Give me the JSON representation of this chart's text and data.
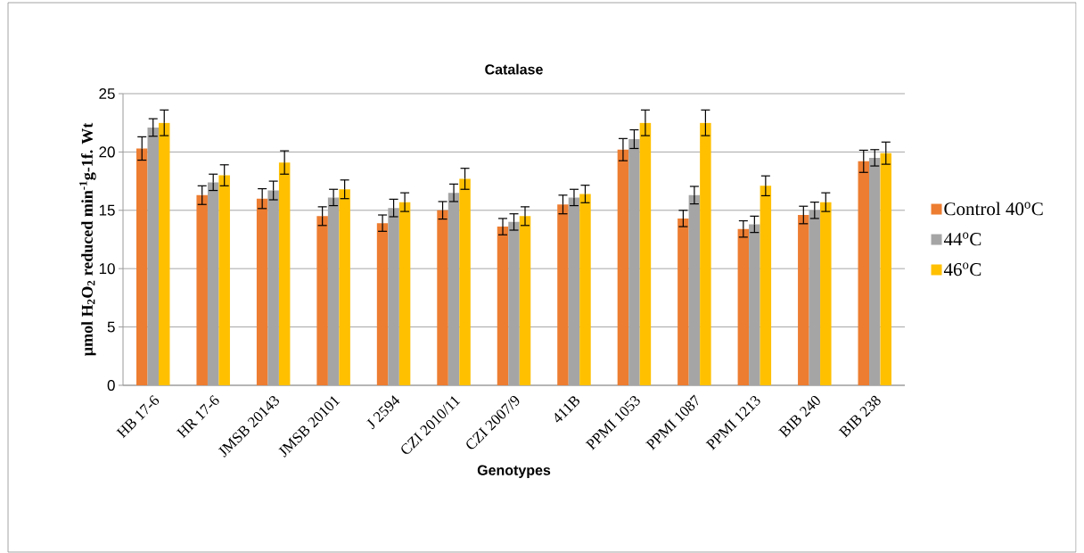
{
  "chart_data": {
    "type": "bar",
    "title": "Catalase",
    "xlabel": "Genotypes",
    "ylabel": "µmol H$_{2}$O$_{2}$ reduced min$^{-1}$g-1f. Wt",
    "categories": [
      "HB 17-6",
      "HR 17-6",
      "JMSB 20143",
      "JMSB 20101",
      "J 2594",
      "CZI 2010/11",
      "CZI 2007/9",
      "411B",
      "PPMI 1053",
      "PPMI 1087",
      "PPMI 1213",
      "BIB 240",
      "BIB 238"
    ],
    "series": [
      {
        "name": "Control 40$^{o}$C",
        "color": "#ed7d31",
        "values": [
          20.3,
          16.3,
          16.0,
          14.5,
          13.9,
          15.0,
          13.6,
          15.5,
          20.2,
          14.3,
          13.4,
          14.6,
          19.2
        ],
        "errors": [
          1.0,
          0.8,
          0.85,
          0.8,
          0.7,
          0.75,
          0.7,
          0.8,
          0.95,
          0.7,
          0.7,
          0.75,
          0.95
        ]
      },
      {
        "name": "44$^{o}$C",
        "color": "#a5a5a5",
        "values": [
          22.1,
          17.4,
          16.7,
          16.1,
          15.2,
          16.5,
          14.0,
          16.1,
          21.1,
          16.3,
          13.8,
          15.0,
          19.5
        ],
        "errors": [
          0.75,
          0.7,
          0.8,
          0.7,
          0.75,
          0.75,
          0.7,
          0.7,
          0.8,
          0.75,
          0.7,
          0.7,
          0.7
        ]
      },
      {
        "name": "46$^{o}$C",
        "color": "#ffc000",
        "values": [
          22.5,
          18.0,
          19.1,
          16.8,
          15.7,
          17.7,
          14.5,
          16.4,
          22.5,
          22.5,
          17.1,
          15.7,
          19.9
        ],
        "errors": [
          1.1,
          0.9,
          1.0,
          0.8,
          0.8,
          0.9,
          0.8,
          0.75,
          1.1,
          1.1,
          0.85,
          0.8,
          0.95
        ]
      }
    ],
    "ylim": [
      0,
      25
    ],
    "yticks": [
      0,
      5,
      10,
      15,
      20,
      25
    ],
    "grid": "y",
    "legend": "right"
  }
}
